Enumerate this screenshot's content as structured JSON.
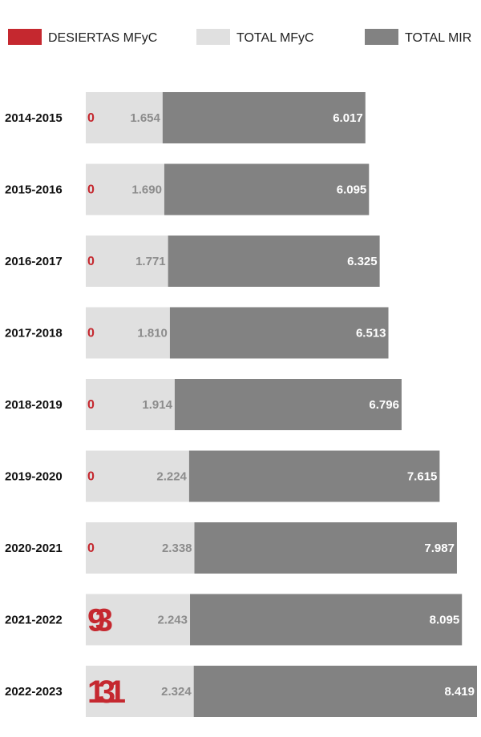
{
  "chart_data": {
    "type": "bar",
    "orientation": "horizontal",
    "stacking": "overlaid",
    "categories": [
      "2014-2015",
      "2015-2016",
      "2016-2017",
      "2017-2018",
      "2018-2019",
      "2019-2020",
      "2020-2021",
      "2021-2022",
      "2022-2023"
    ],
    "series": [
      {
        "name": "DESIERTAS MFyC",
        "color": "#c5282f",
        "values": [
          0,
          0,
          0,
          0,
          0,
          0,
          0,
          93,
          131
        ],
        "labels": [
          "0",
          "0",
          "0",
          "0",
          "0",
          "0",
          "0",
          "93",
          "131"
        ]
      },
      {
        "name": "TOTAL MFyC",
        "color": "#e0e0e0",
        "values": [
          1654,
          1690,
          1771,
          1810,
          1914,
          2224,
          2338,
          2243,
          2324
        ],
        "labels": [
          "1.654",
          "1.690",
          "1.771",
          "1.810",
          "1.914",
          "2.224",
          "2.338",
          "2.243",
          "2.324"
        ]
      },
      {
        "name": "TOTAL MIR",
        "color": "#828282",
        "values": [
          6017,
          6095,
          6325,
          6513,
          6796,
          7615,
          7987,
          8095,
          8419
        ],
        "labels": [
          "6.017",
          "6.095",
          "6.325",
          "6.513",
          "6.796",
          "7.615",
          "7.987",
          "8.095",
          "8.419"
        ]
      }
    ],
    "legend_position": "top",
    "grid": false,
    "title": "",
    "xlabel": "",
    "ylabel": ""
  },
  "colors": {
    "desiertas_label": "#c5282f",
    "mfyc_label": "#8c8c8c",
    "mir_label": "#ffffff",
    "category_label": "#111111"
  }
}
